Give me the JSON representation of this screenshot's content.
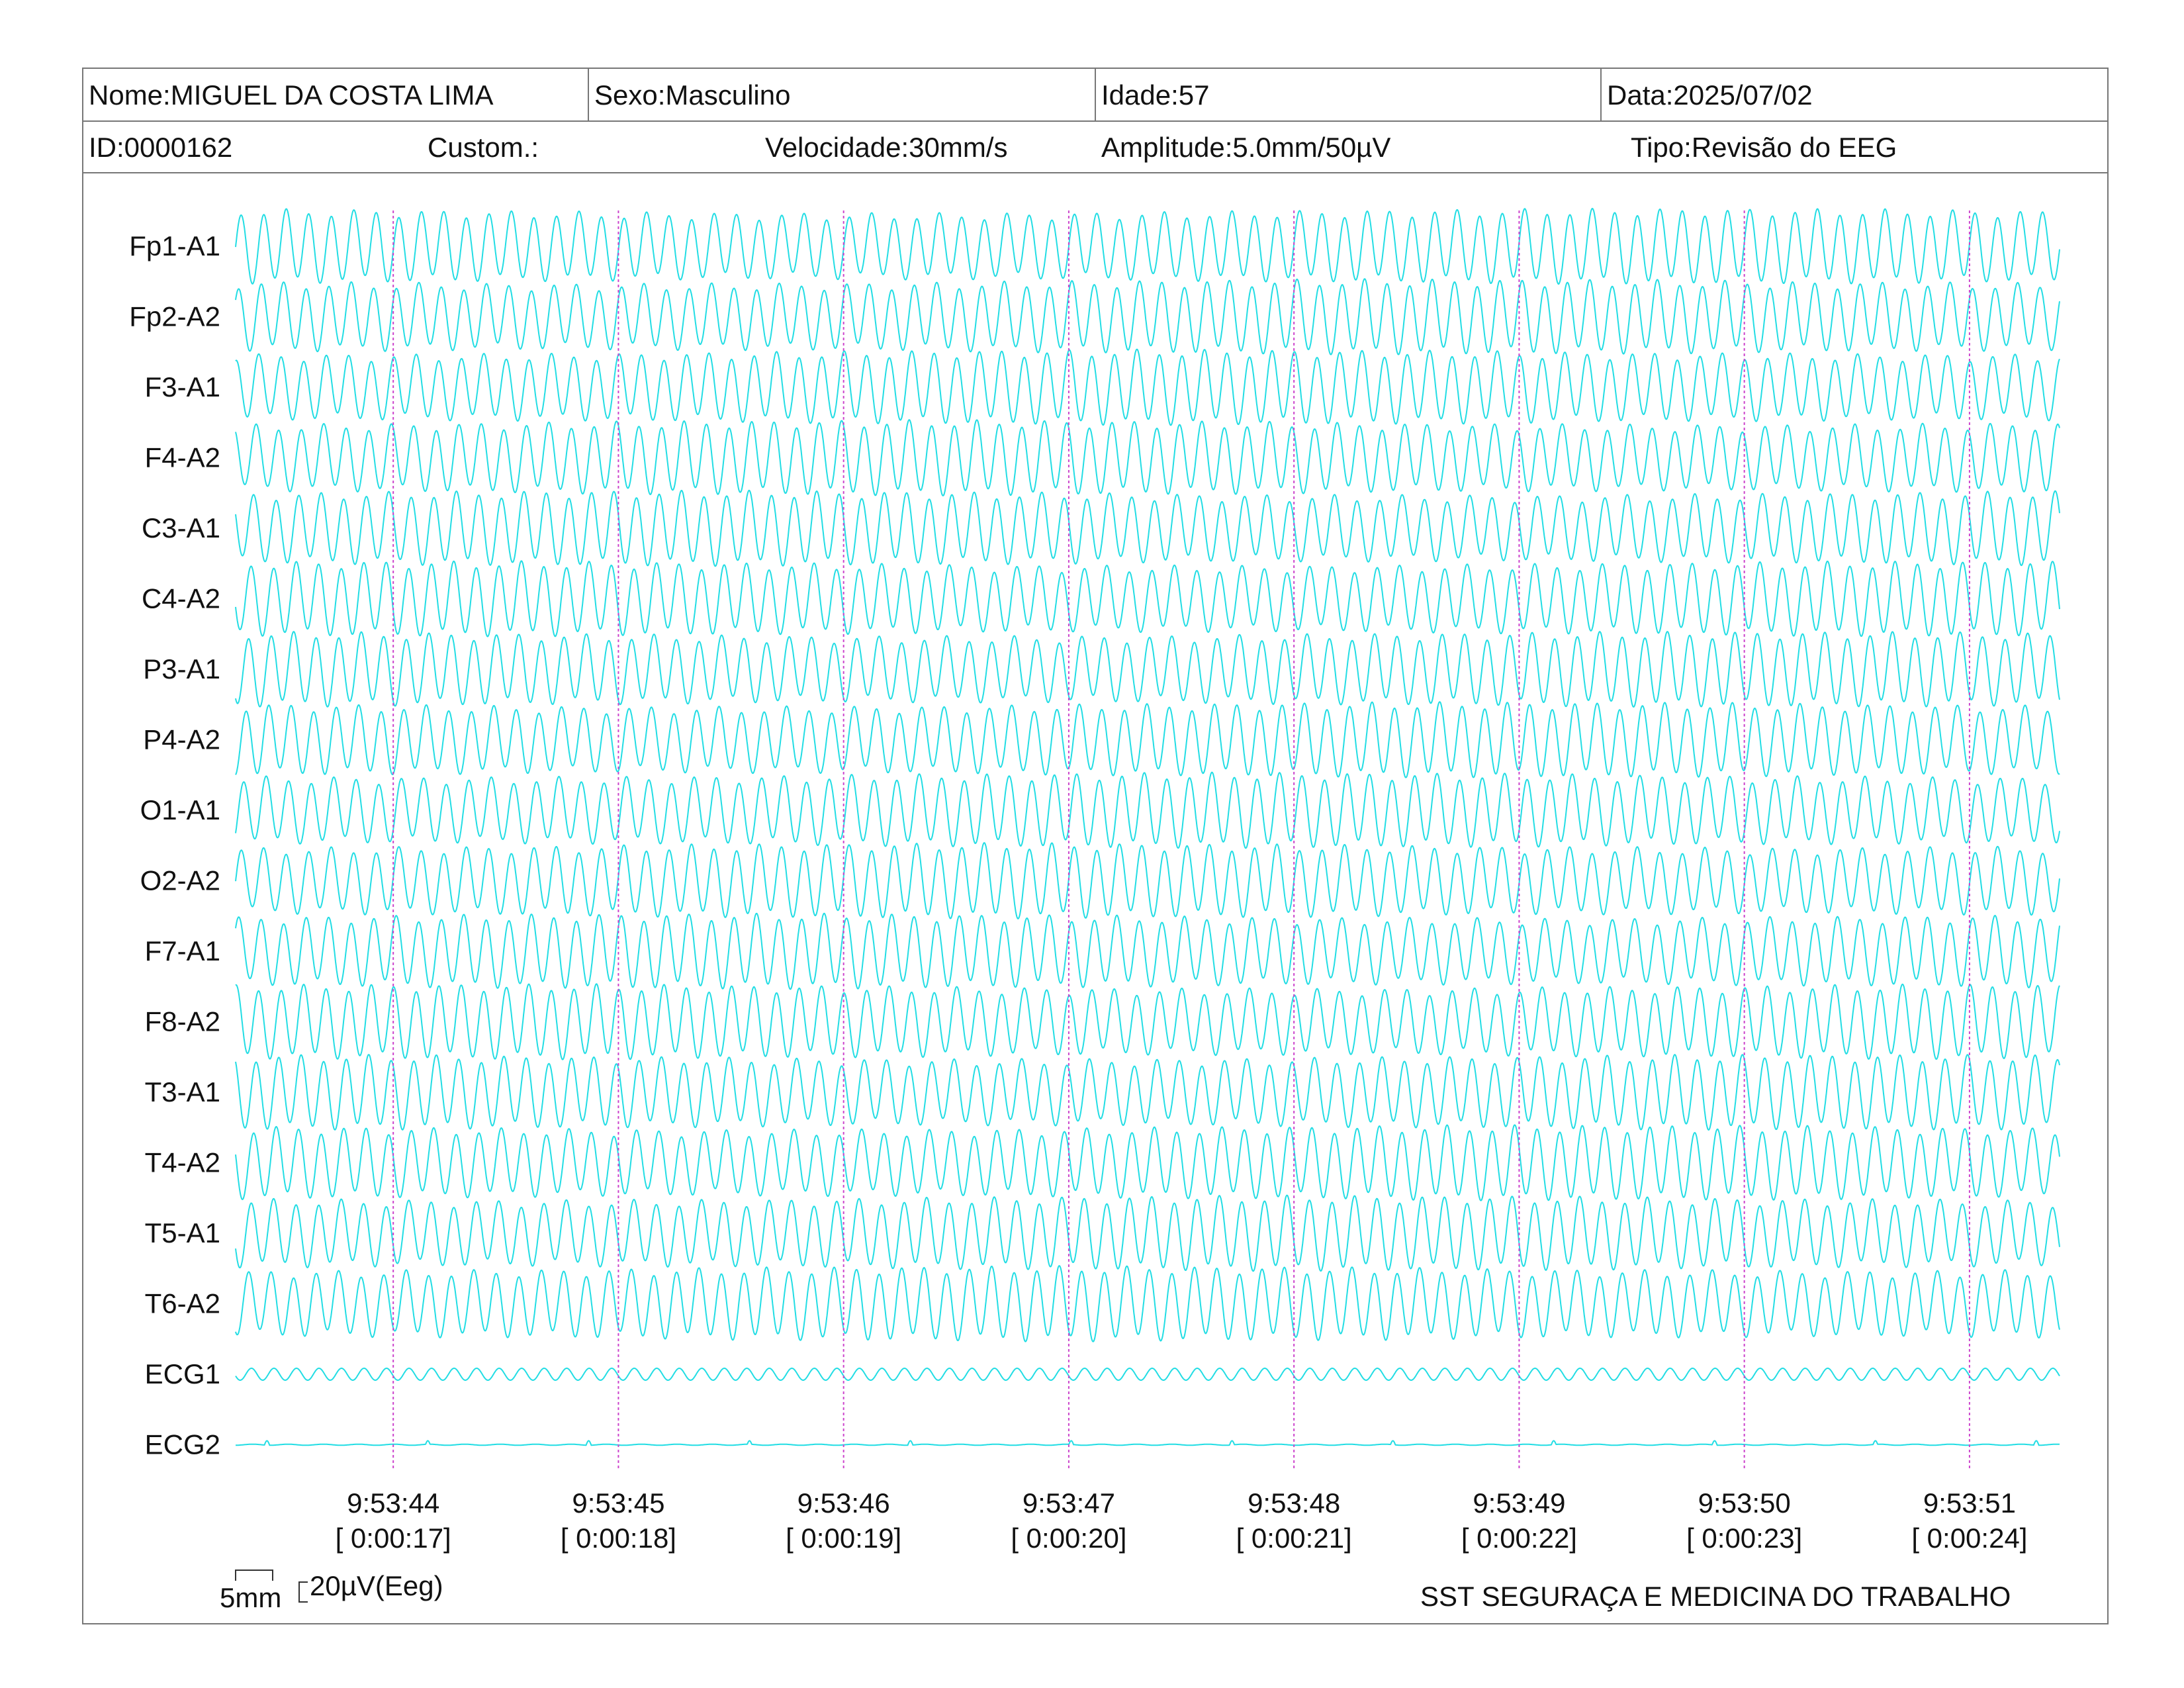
{
  "header": {
    "nome": "Nome:MIGUEL DA COSTA LIMA",
    "sexo": "Sexo:Masculino",
    "idade": "Idade:57",
    "data": "Data:2025/07/02",
    "id": "ID:0000162",
    "custom": "Custom.:",
    "velocidade": "Velocidade:30mm/s",
    "amplitude": "Amplitude:5.0mm/50µV",
    "tipo": "Tipo:Revisão do EEG"
  },
  "colors": {
    "trace": "#22dde4",
    "marker": "#cc44cc",
    "border": "#777777"
  },
  "chart_data": {
    "type": "line",
    "channels": [
      "Fp1-A1",
      "Fp2-A2",
      "F3-A1",
      "F4-A2",
      "C3-A1",
      "C4-A2",
      "P3-A1",
      "P4-A2",
      "O1-A1",
      "O2-A2",
      "F7-A1",
      "F8-A2",
      "T3-A1",
      "T4-A2",
      "T5-A1",
      "T6-A2",
      "ECG1",
      "ECG2"
    ],
    "time_markers": [
      {
        "clock": "9:53:44",
        "elapsed": "[ 0:00:17]"
      },
      {
        "clock": "9:53:45",
        "elapsed": "[ 0:00:18]"
      },
      {
        "clock": "9:53:46",
        "elapsed": "[ 0:00:19]"
      },
      {
        "clock": "9:53:47",
        "elapsed": "[ 0:00:20]"
      },
      {
        "clock": "9:53:48",
        "elapsed": "[ 0:00:21]"
      },
      {
        "clock": "9:53:49",
        "elapsed": "[ 0:00:22]"
      },
      {
        "clock": "9:53:50",
        "elapsed": "[ 0:00:23]"
      },
      {
        "clock": "9:53:51",
        "elapsed": "[ 0:00:24]"
      }
    ],
    "window_start_s": 16.3,
    "window_end_s": 24.4,
    "eeg_frequency_hz": 10
  },
  "scale_bar": {
    "time_label": "5mm",
    "amp_label": "20µV(Eeg)"
  },
  "footer": {
    "company": "SST SEGURAÇA E MEDICINA DO TRABALHO"
  }
}
